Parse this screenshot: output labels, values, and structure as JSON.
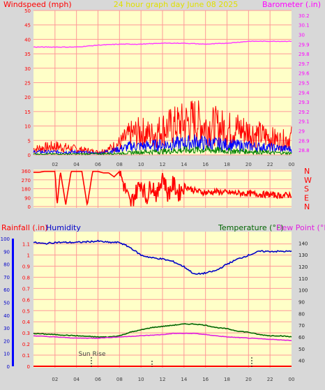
{
  "header": {
    "left_label": "Windspeed (mph)",
    "center_label": "24 hour graph day   June 08 2025",
    "right_label": "Barometer (.in)"
  },
  "wind_chart": {
    "y_ticks": [
      "0",
      "5",
      "10",
      "15",
      "20",
      "25",
      "30",
      "35",
      "40",
      "45",
      "50"
    ],
    "baro_ticks": [
      "28.8",
      "28.9",
      "29",
      "29.1",
      "29.2",
      "29.3",
      "29.4",
      "29.5",
      "29.6",
      "29.7",
      "29.8",
      "29.9",
      "30",
      "30.1",
      "30.2"
    ]
  },
  "dir_chart": {
    "y_ticks": [
      "0",
      "90",
      "180",
      "270",
      "360"
    ],
    "compass": [
      "N",
      "W",
      "S",
      "E",
      "N"
    ]
  },
  "lower_chart": {
    "rainfall_label": "Rainfall (.in)",
    "humidity_label": "Humidity",
    "temperature_label": "Temperature (°F)",
    "dewpoint_label": "Dew Point (°F)",
    "rain_ticks": [
      "0",
      "0.1",
      "0.2",
      "0.3",
      "0.4",
      "0.5",
      "0.6",
      "0.7",
      "0.8",
      "0.9",
      "1",
      "1.1"
    ],
    "humidity_ticks": [
      "0",
      "10",
      "20",
      "30",
      "40",
      "50",
      "60",
      "70",
      "80",
      "90",
      "100"
    ],
    "temp_ticks": [
      "40",
      "50",
      "60",
      "70",
      "80",
      "90",
      "100",
      "110",
      "120",
      "130",
      "140"
    ],
    "annotation": "Sun Rise"
  },
  "x_ticks": [
    "02",
    "04",
    "06",
    "08",
    "10",
    "12",
    "14",
    "16",
    "18",
    "20",
    "22",
    "00"
  ],
  "colors": {
    "plot_bg": "#ffffc8",
    "grid": "#ff9898",
    "gust": "#ff0000",
    "wind": "#0000ff",
    "avg": "#008000",
    "baro": "#ff40ff",
    "humidity": "#0000c8",
    "temperature": "#006400",
    "dewpoint": "#e020e0",
    "header_yellow": "#e0e000",
    "axis_red": "#ff0000",
    "axis_magenta": "#ff00ff"
  },
  "chart_data": [
    {
      "type": "line",
      "title": "24 hour graph day   June 08 2025",
      "xlabel": "",
      "ylabel": "Windspeed (mph)",
      "y2label": "Barometer (.in)",
      "ylim": [
        0,
        50
      ],
      "y2lim": [
        28.75,
        30.25
      ],
      "x_hours": [
        0,
        24
      ],
      "series": [
        {
          "name": "gust",
          "axis": "left",
          "points": [
            [
              0,
              2
            ],
            [
              2,
              3
            ],
            [
              4,
              2
            ],
            [
              6,
              1
            ],
            [
              7,
              2
            ],
            [
              8,
              4
            ],
            [
              9,
              7
            ],
            [
              10,
              8
            ],
            [
              11,
              7
            ],
            [
              12,
              9
            ],
            [
              13,
              10
            ],
            [
              14,
              11
            ],
            [
              15,
              12
            ],
            [
              16,
              10
            ],
            [
              17,
              10
            ],
            [
              18,
              9
            ],
            [
              19,
              9
            ],
            [
              20,
              8
            ],
            [
              21,
              7
            ],
            [
              22,
              6
            ],
            [
              23,
              5
            ],
            [
              24,
              6
            ]
          ]
        },
        {
          "name": "wind",
          "axis": "left",
          "points": [
            [
              0,
              1
            ],
            [
              2,
              1
            ],
            [
              4,
              1
            ],
            [
              6,
              0.5
            ],
            [
              8,
              2
            ],
            [
              9,
              3
            ],
            [
              10,
              3
            ],
            [
              12,
              3.5
            ],
            [
              14,
              4
            ],
            [
              15,
              4.5
            ],
            [
              16,
              4
            ],
            [
              18,
              3.5
            ],
            [
              20,
              3
            ],
            [
              22,
              2.5
            ],
            [
              24,
              2
            ]
          ]
        },
        {
          "name": "avg",
          "axis": "left",
          "points": [
            [
              0,
              0.3
            ],
            [
              4,
              0.3
            ],
            [
              8,
              0.5
            ],
            [
              10,
              1
            ],
            [
              12,
              1.2
            ],
            [
              14,
              1.6
            ],
            [
              16,
              1.8
            ],
            [
              18,
              1.4
            ],
            [
              20,
              1.2
            ],
            [
              22,
              0.8
            ],
            [
              24,
              0.6
            ]
          ]
        },
        {
          "name": "barometer",
          "axis": "right",
          "points": [
            [
              0,
              29.87
            ],
            [
              2,
              29.87
            ],
            [
              4,
              29.87
            ],
            [
              6,
              29.89
            ],
            [
              8,
              29.9
            ],
            [
              10,
              29.9
            ],
            [
              12,
              29.91
            ],
            [
              14,
              29.91
            ],
            [
              16,
              29.9
            ],
            [
              18,
              29.91
            ],
            [
              20,
              29.93
            ],
            [
              22,
              29.93
            ],
            [
              24,
              29.93
            ]
          ]
        }
      ]
    },
    {
      "type": "line",
      "xlabel": "",
      "ylabel": "",
      "ylim": [
        0,
        360
      ],
      "x_hours": [
        0,
        24
      ],
      "series": [
        {
          "name": "direction",
          "points": [
            [
              0,
              345
            ],
            [
              0.5,
              345
            ],
            [
              1,
              355
            ],
            [
              2,
              355
            ],
            [
              2.2,
              10
            ],
            [
              2.5,
              355
            ],
            [
              3,
              20
            ],
            [
              3.5,
              355
            ],
            [
              4.5,
              355
            ],
            [
              5,
              10
            ],
            [
              5.5,
              355
            ],
            [
              6,
              355
            ],
            [
              6.5,
              340
            ],
            [
              7,
              340
            ],
            [
              7.5,
              300
            ],
            [
              8,
              355
            ],
            [
              9,
              20
            ],
            [
              10,
              250
            ],
            [
              10.5,
              80
            ],
            [
              11,
              240
            ],
            [
              11.5,
              100
            ],
            [
              12,
              330
            ],
            [
              12.5,
              120
            ],
            [
              13,
              230
            ],
            [
              13.5,
              130
            ],
            [
              14,
              210
            ],
            [
              15,
              160
            ],
            [
              16,
              140
            ],
            [
              17,
              150
            ],
            [
              18,
              140
            ],
            [
              19,
              135
            ],
            [
              20,
              130
            ],
            [
              21,
              125
            ],
            [
              22,
              120
            ],
            [
              23,
              110
            ],
            [
              24,
              120
            ]
          ]
        }
      ]
    },
    {
      "type": "line",
      "xlabel": "",
      "ylabel": "Rainfall (.in)",
      "ylim": [
        0,
        1.2
      ],
      "x_hours": [
        0,
        24
      ],
      "series": [
        {
          "name": "Humidity",
          "axis": "humidity",
          "ylim": [
            0,
            100
          ],
          "points": [
            [
              0,
              97
            ],
            [
              1,
              96
            ],
            [
              2,
              97
            ],
            [
              4,
              97
            ],
            [
              6,
              98
            ],
            [
              7,
              97
            ],
            [
              8,
              97
            ],
            [
              9,
              93
            ],
            [
              10,
              87
            ],
            [
              11,
              85
            ],
            [
              12,
              84
            ],
            [
              13,
              82
            ],
            [
              14,
              78
            ],
            [
              15,
              72
            ],
            [
              16,
              73
            ],
            [
              17,
              75
            ],
            [
              18,
              80
            ],
            [
              19,
              84
            ],
            [
              20,
              87
            ],
            [
              21,
              90
            ],
            [
              22,
              90
            ],
            [
              23,
              90
            ],
            [
              24,
              90
            ]
          ]
        },
        {
          "name": "Temperature (°F)",
          "axis": "temperature",
          "ylim": [
            35,
            145
          ],
          "points": [
            [
              0,
              63
            ],
            [
              2,
              62
            ],
            [
              4,
              61
            ],
            [
              6,
              60
            ],
            [
              7,
              60
            ],
            [
              8,
              61
            ],
            [
              9,
              64
            ],
            [
              10,
              66
            ],
            [
              11,
              68
            ],
            [
              12,
              69
            ],
            [
              13,
              70
            ],
            [
              14,
              71
            ],
            [
              15,
              71
            ],
            [
              16,
              70
            ],
            [
              17,
              68
            ],
            [
              18,
              67
            ],
            [
              19,
              65
            ],
            [
              20,
              64
            ],
            [
              21,
              62
            ],
            [
              22,
              61
            ],
            [
              23,
              61
            ],
            [
              24,
              60
            ]
          ]
        },
        {
          "name": "Dew Point (°F)",
          "axis": "temperature",
          "ylim": [
            35,
            145
          ],
          "points": [
            [
              0,
              61
            ],
            [
              2,
              60
            ],
            [
              4,
              59
            ],
            [
              6,
              59
            ],
            [
              8,
              60
            ],
            [
              10,
              61
            ],
            [
              12,
              62
            ],
            [
              13,
              63
            ],
            [
              14,
              63
            ],
            [
              15,
              63
            ],
            [
              16,
              62
            ],
            [
              18,
              60
            ],
            [
              20,
              59
            ],
            [
              22,
              58
            ],
            [
              24,
              57
            ]
          ]
        },
        {
          "name": "Rainfall (.in)",
          "axis": "rain",
          "points": [
            [
              0,
              0
            ],
            [
              24,
              0
            ]
          ]
        }
      ]
    }
  ]
}
